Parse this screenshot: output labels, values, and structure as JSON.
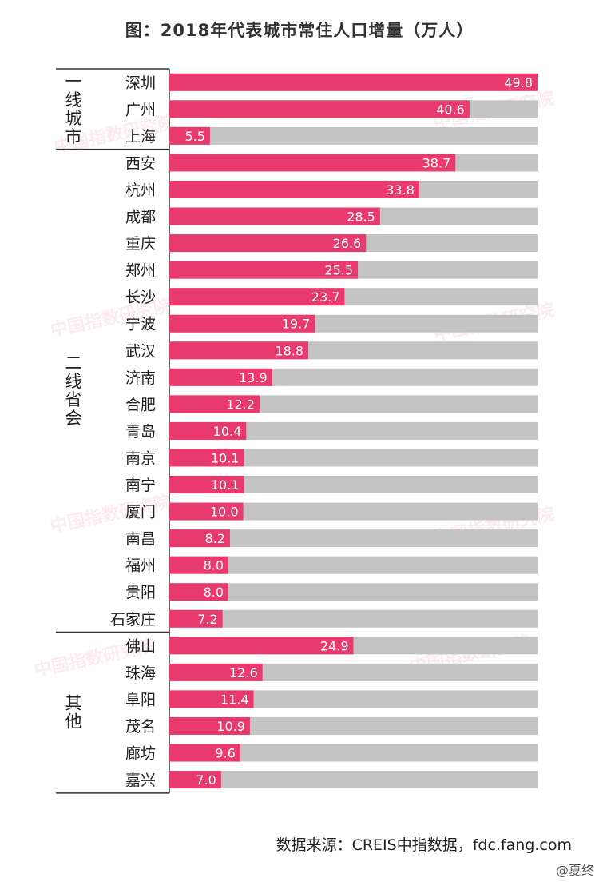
{
  "chart_data": {
    "type": "bar",
    "orientation": "horizontal",
    "title": "图：2018年代表城市常住人口增量（万人）",
    "xlim": [
      0,
      49.8
    ],
    "groups": [
      {
        "name": "一线城市",
        "size": 3
      },
      {
        "name": "二线省会",
        "size": 18
      },
      {
        "name": "其他",
        "size": 6
      }
    ],
    "categories": [
      "深圳",
      "广州",
      "上海",
      "西安",
      "杭州",
      "成都",
      "重庆",
      "郑州",
      "长沙",
      "宁波",
      "武汉",
      "济南",
      "合肥",
      "青岛",
      "南京",
      "南宁",
      "厦门",
      "南昌",
      "福州",
      "贵阳",
      "石家庄",
      "佛山",
      "珠海",
      "阜阳",
      "茂名",
      "廊坊",
      "嘉兴"
    ],
    "values": [
      49.8,
      40.6,
      5.5,
      38.7,
      33.8,
      28.5,
      26.6,
      25.5,
      23.7,
      19.7,
      18.8,
      13.9,
      12.2,
      10.4,
      10.1,
      10.1,
      10.0,
      8.2,
      8.0,
      8.0,
      7.2,
      24.9,
      12.6,
      11.4,
      10.9,
      9.6,
      7.0
    ],
    "value_labels": [
      "49.8",
      "40.6",
      "5.5",
      "38.7",
      "33.8",
      "28.5",
      "26.6",
      "25.5",
      "23.7",
      "19.7",
      "18.8",
      "13.9",
      "12.2",
      "10.4",
      "10.1",
      "10.1",
      "10.0",
      "8.2",
      "8.0",
      "8.0",
      "7.2",
      "24.9",
      "12.6",
      "11.4",
      "10.9",
      "9.6",
      "7.0"
    ],
    "colors": {
      "bar": "#e83a6c",
      "track": "#c4c4c4",
      "label": "#ffffff",
      "text": "#222222",
      "rule": "#333333"
    },
    "watermark": "中国指数研究院"
  },
  "footer": {
    "source": "数据来源：CREIS中指数据，fdc.fang.com",
    "credit": "@夏终"
  }
}
